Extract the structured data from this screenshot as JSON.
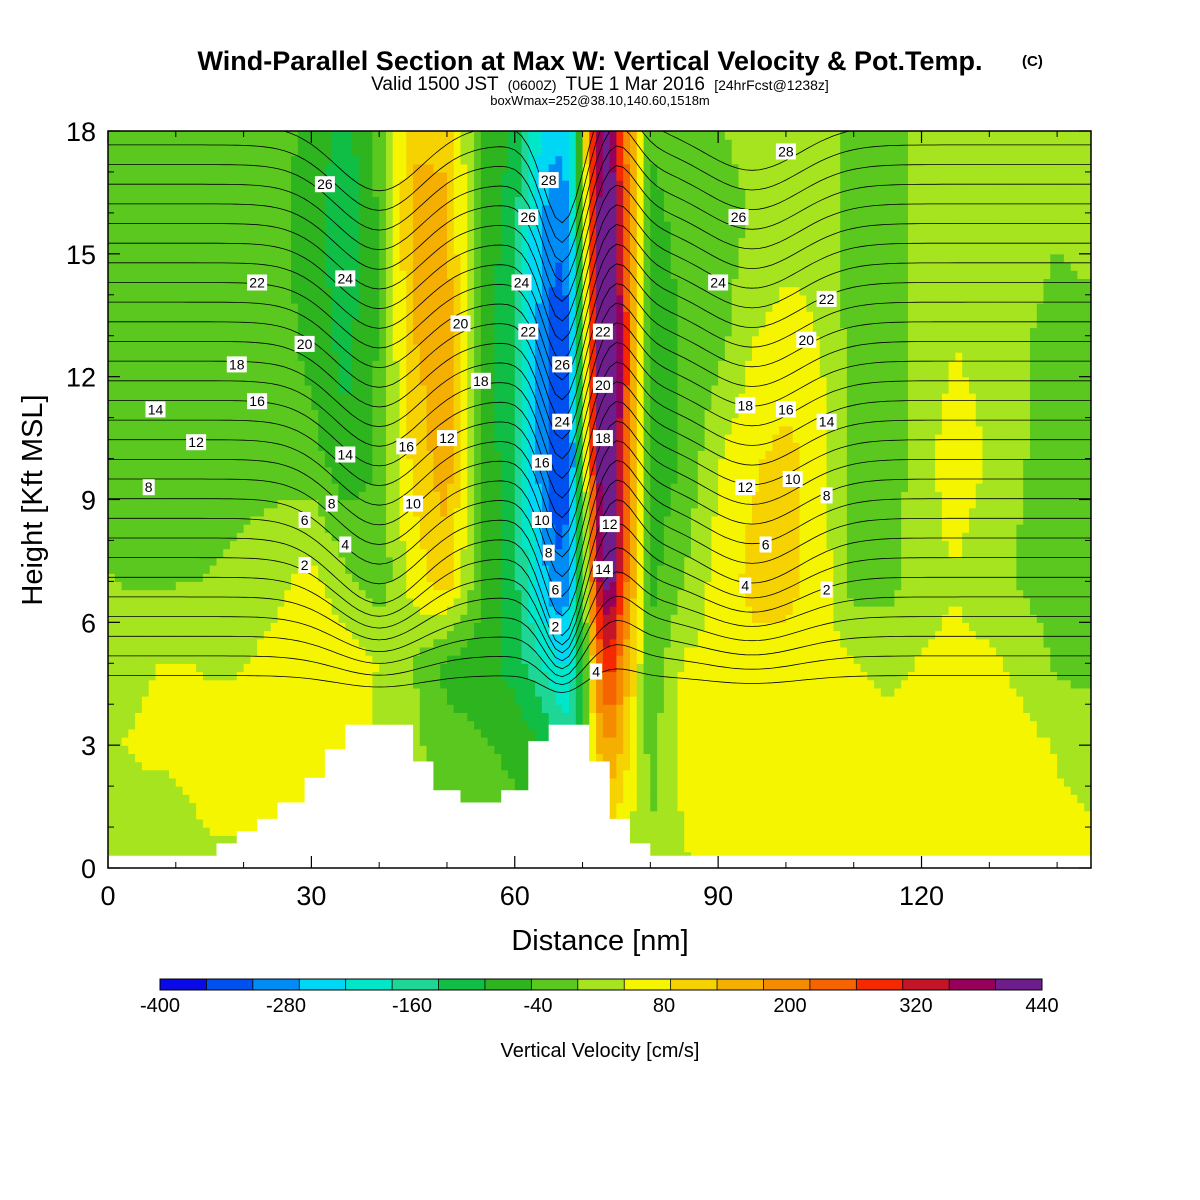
{
  "header": {
    "title": "Wind-Parallel Section at Max W: Vertical Velocity & Pot.Temp.",
    "copyright": "(C)",
    "valid_prefix": "Valid 1500 JST",
    "valid_zulu": "(0600Z)",
    "valid_suffix": "TUE 1 Mar 2016",
    "forecast": "[24hrFcst@1238z]",
    "box_info": "boxWmax=252@38.10,140.60,1518m"
  },
  "chart_data": {
    "type": "heatmap",
    "xlabel": "Distance [nm]",
    "ylabel": "Height [Kft MSL]",
    "xlim": [
      0,
      145
    ],
    "ylim": [
      0,
      18
    ],
    "x_ticks": [
      0,
      30,
      60,
      90,
      120
    ],
    "y_ticks": [
      0,
      3,
      6,
      9,
      12,
      15,
      18
    ],
    "x_minor_step": 10,
    "y_minor_step": 1,
    "colorbar": {
      "title": "Vertical Velocity [cm/s]",
      "tick_labels": [
        "-400",
        "-280",
        "-160",
        "-40",
        "80",
        "200",
        "320",
        "440"
      ],
      "bounds": [
        -400,
        440
      ],
      "colors": [
        "#0a0ae6",
        "#0050f0",
        "#008cf5",
        "#00d7f5",
        "#00e6c8",
        "#1ed796",
        "#10be46",
        "#2db41e",
        "#5ac81e",
        "#a5e41e",
        "#f5f500",
        "#f5d200",
        "#f5af00",
        "#f58c00",
        "#f56400",
        "#f52800",
        "#c31428",
        "#96005a",
        "#6e1e8c"
      ]
    },
    "field": {
      "x_nm": [
        0,
        5,
        10,
        15,
        20,
        25,
        30,
        35,
        40,
        45,
        50,
        55,
        60,
        63,
        66,
        68,
        70,
        72,
        74,
        76,
        80,
        85,
        90,
        95,
        100,
        105,
        110,
        115,
        120,
        125,
        130,
        135,
        140,
        145
      ],
      "rows": [
        {
          "z": 0.3,
          "w": [
            30,
            30,
            35,
            40,
            40,
            50,
            55,
            50,
            20,
            10,
            5,
            0,
            -20,
            -40,
            -60,
            -80,
            -60,
            40,
            60,
            40,
            0,
            40,
            50,
            50,
            50,
            50,
            50,
            50,
            50,
            50,
            50,
            50,
            50,
            50
          ]
        },
        {
          "z": 3,
          "w": [
            40,
            45,
            45,
            50,
            55,
            65,
            75,
            70,
            30,
            10,
            -30,
            -40,
            -60,
            -80,
            -120,
            -160,
            -100,
            120,
            180,
            120,
            -20,
            60,
            60,
            60,
            60,
            60,
            60,
            60,
            60,
            60,
            60,
            55,
            40,
            30
          ]
        },
        {
          "z": 5,
          "w": [
            30,
            40,
            45,
            40,
            40,
            60,
            80,
            70,
            40,
            0,
            -60,
            -70,
            -110,
            -160,
            -220,
            -220,
            -100,
            200,
            300,
            180,
            -40,
            50,
            50,
            70,
            70,
            60,
            45,
            30,
            45,
            50,
            50,
            30,
            -10,
            -20
          ]
        },
        {
          "z": 7,
          "w": [
            0,
            -10,
            -5,
            0,
            10,
            30,
            60,
            10,
            -30,
            60,
            110,
            -40,
            -120,
            -220,
            -300,
            -280,
            -80,
            320,
            440,
            260,
            -60,
            0,
            60,
            100,
            100,
            70,
            -20,
            -20,
            30,
            40,
            20,
            -10,
            -20,
            -30
          ]
        },
        {
          "z": 10,
          "w": [
            -20,
            -30,
            -30,
            -20,
            -20,
            -20,
            -30,
            -80,
            -40,
            100,
            160,
            -40,
            -140,
            -260,
            -360,
            -340,
            -60,
            380,
            480,
            300,
            -80,
            -40,
            40,
            80,
            100,
            70,
            -30,
            -40,
            30,
            60,
            40,
            0,
            -20,
            -30
          ]
        },
        {
          "z": 13,
          "w": [
            -20,
            -30,
            -30,
            -30,
            -30,
            -30,
            -60,
            -110,
            -40,
            130,
            160,
            -60,
            -140,
            -260,
            -340,
            -320,
            -40,
            400,
            500,
            320,
            -80,
            -40,
            -20,
            40,
            60,
            40,
            -20,
            -30,
            20,
            40,
            30,
            0,
            -10,
            -20
          ]
        },
        {
          "z": 16,
          "w": [
            -20,
            -30,
            -30,
            -30,
            -30,
            -30,
            -70,
            -130,
            -40,
            150,
            140,
            -50,
            -120,
            -240,
            -300,
            -280,
            -20,
            380,
            460,
            280,
            -60,
            -30,
            -30,
            0,
            20,
            30,
            -20,
            -30,
            20,
            40,
            30,
            10,
            0,
            20
          ]
        },
        {
          "z": 18,
          "w": [
            -20,
            -20,
            -20,
            -20,
            -30,
            -30,
            -60,
            -110,
            -30,
            120,
            120,
            -40,
            -100,
            -200,
            -260,
            -240,
            0,
            360,
            420,
            240,
            -40,
            -20,
            -10,
            20,
            30,
            30,
            -20,
            -30,
            20,
            30,
            40,
            30,
            20,
            30
          ]
        }
      ]
    },
    "terrain": [
      [
        0,
        0.3
      ],
      [
        16,
        0.3
      ],
      [
        16,
        0.6
      ],
      [
        19,
        0.6
      ],
      [
        19,
        0.9
      ],
      [
        22,
        0.9
      ],
      [
        22,
        1.2
      ],
      [
        25,
        1.2
      ],
      [
        25,
        1.6
      ],
      [
        29,
        1.6
      ],
      [
        29,
        2.2
      ],
      [
        32,
        2.2
      ],
      [
        32,
        2.9
      ],
      [
        35,
        2.9
      ],
      [
        35,
        3.5
      ],
      [
        45,
        3.5
      ],
      [
        45,
        2.6
      ],
      [
        48,
        2.6
      ],
      [
        48,
        1.9
      ],
      [
        52,
        1.9
      ],
      [
        52,
        1.6
      ],
      [
        58,
        1.6
      ],
      [
        58,
        1.9
      ],
      [
        62,
        1.9
      ],
      [
        62,
        3.1
      ],
      [
        65,
        3.1
      ],
      [
        65,
        3.5
      ],
      [
        71,
        3.5
      ],
      [
        71,
        2.6
      ],
      [
        74,
        2.6
      ],
      [
        74,
        1.2
      ],
      [
        77,
        1.2
      ],
      [
        77,
        0.6
      ],
      [
        80,
        0.6
      ],
      [
        80,
        0.3
      ],
      [
        145,
        0.3
      ]
    ],
    "theta_contour_labels": [
      {
        "text": "28",
        "x": 100,
        "y": 17.5
      },
      {
        "text": "26",
        "x": 32,
        "y": 16.7
      },
      {
        "text": "28",
        "x": 65,
        "y": 16.8
      },
      {
        "text": "26",
        "x": 62,
        "y": 15.9
      },
      {
        "text": "26",
        "x": 93,
        "y": 15.9
      },
      {
        "text": "24",
        "x": 35,
        "y": 14.4
      },
      {
        "text": "24",
        "x": 61,
        "y": 14.3
      },
      {
        "text": "24",
        "x": 90,
        "y": 14.3
      },
      {
        "text": "22",
        "x": 22,
        "y": 14.3
      },
      {
        "text": "22",
        "x": 106,
        "y": 13.9
      },
      {
        "text": "20",
        "x": 52,
        "y": 13.3
      },
      {
        "text": "22",
        "x": 62,
        "y": 13.1
      },
      {
        "text": "22",
        "x": 73,
        "y": 13.1
      },
      {
        "text": "20",
        "x": 29,
        "y": 12.8
      },
      {
        "text": "20",
        "x": 103,
        "y": 12.9
      },
      {
        "text": "26",
        "x": 67,
        "y": 12.3
      },
      {
        "text": "18",
        "x": 19,
        "y": 12.3
      },
      {
        "text": "18",
        "x": 55,
        "y": 11.9
      },
      {
        "text": "20",
        "x": 73,
        "y": 11.8
      },
      {
        "text": "16",
        "x": 22,
        "y": 11.4
      },
      {
        "text": "18",
        "x": 94,
        "y": 11.3
      },
      {
        "text": "16",
        "x": 100,
        "y": 11.2
      },
      {
        "text": "14",
        "x": 7,
        "y": 11.2
      },
      {
        "text": "24",
        "x": 67,
        "y": 10.9
      },
      {
        "text": "14",
        "x": 106,
        "y": 10.9
      },
      {
        "text": "18",
        "x": 73,
        "y": 10.5
      },
      {
        "text": "12",
        "x": 50,
        "y": 10.5
      },
      {
        "text": "12",
        "x": 13,
        "y": 10.4
      },
      {
        "text": "16",
        "x": 44,
        "y": 10.3
      },
      {
        "text": "14",
        "x": 35,
        "y": 10.1
      },
      {
        "text": "16",
        "x": 64,
        "y": 9.9
      },
      {
        "text": "10",
        "x": 101,
        "y": 9.5
      },
      {
        "text": "12",
        "x": 94,
        "y": 9.3
      },
      {
        "text": "8",
        "x": 6,
        "y": 9.3
      },
      {
        "text": "8",
        "x": 106,
        "y": 9.1
      },
      {
        "text": "10",
        "x": 45,
        "y": 8.9
      },
      {
        "text": "8",
        "x": 33,
        "y": 8.9
      },
      {
        "text": "10",
        "x": 64,
        "y": 8.5
      },
      {
        "text": "6",
        "x": 29,
        "y": 8.5
      },
      {
        "text": "12",
        "x": 74,
        "y": 8.4
      },
      {
        "text": "6",
        "x": 97,
        "y": 7.9
      },
      {
        "text": "4",
        "x": 35,
        "y": 7.9
      },
      {
        "text": "8",
        "x": 65,
        "y": 7.7
      },
      {
        "text": "14",
        "x": 73,
        "y": 7.3
      },
      {
        "text": "2",
        "x": 29,
        "y": 7.4
      },
      {
        "text": "4",
        "x": 94,
        "y": 6.9
      },
      {
        "text": "6",
        "x": 66,
        "y": 6.8
      },
      {
        "text": "2",
        "x": 106,
        "y": 6.8
      },
      {
        "text": "2",
        "x": 66,
        "y": 5.9
      },
      {
        "text": "4",
        "x": 72,
        "y": 4.8
      }
    ]
  }
}
